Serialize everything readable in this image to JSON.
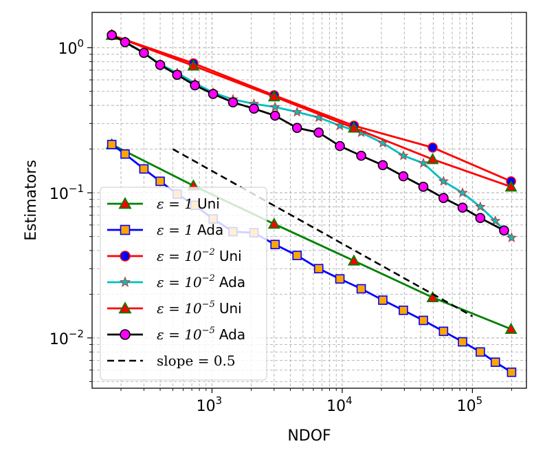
{
  "chart_data": {
    "type": "line",
    "xscale": "log",
    "yscale": "log",
    "xlim": [
      120,
      260000
    ],
    "ylim": [
      0.0045,
      1.75
    ],
    "xlabel": "NDOF",
    "ylabel": "Estimators",
    "xtick_labels": [
      {
        "base": "10",
        "exp": "3",
        "value": 1000
      },
      {
        "base": "10",
        "exp": "4",
        "value": 10000
      },
      {
        "base": "10",
        "exp": "5",
        "value": 100000
      }
    ],
    "ytick_labels": [
      {
        "base": "10",
        "exp": "−2",
        "value": 0.01
      },
      {
        "base": "10",
        "exp": "−1",
        "value": 0.1
      },
      {
        "base": "10",
        "exp": "0",
        "value": 1
      }
    ],
    "grid": true,
    "legend_position": "lower-left",
    "series": [
      {
        "name": "eps1-uni",
        "label_math": "ε = 1",
        "label_sup": "",
        "label_text": "Uni",
        "color": "#008000",
        "marker": "triangle",
        "marker_face": "#ff0000",
        "marker_edge": "#008000",
        "x": [
          170,
          720,
          3000,
          12300,
          49500,
          198000
        ],
        "y": [
          0.215,
          0.112,
          0.061,
          0.034,
          0.019,
          0.0115
        ]
      },
      {
        "name": "eps1-ada",
        "label_math": "ε = 1",
        "label_sup": "",
        "label_text": "Ada",
        "color": "#0000ff",
        "marker": "square",
        "marker_face": "#ffa500",
        "marker_edge": "#0000ff",
        "x": [
          170,
          215,
          300,
          400,
          540,
          740,
          1020,
          1450,
          2100,
          3050,
          4500,
          6600,
          9600,
          14000,
          20500,
          29500,
          42000,
          60000,
          84000,
          115000,
          150000,
          200000
        ],
        "y": [
          0.215,
          0.185,
          0.146,
          0.12,
          0.098,
          0.082,
          0.066,
          0.054,
          0.053,
          0.044,
          0.037,
          0.03,
          0.0255,
          0.0218,
          0.0182,
          0.0155,
          0.0132,
          0.0111,
          0.0094,
          0.008,
          0.0068,
          0.0058
        ]
      },
      {
        "name": "eps1e-2-uni",
        "label_math": "ε = 10",
        "label_sup": "−2",
        "label_text": "Uni",
        "color": "#ff0000",
        "marker": "circle",
        "marker_face": "#0000ff",
        "marker_edge": "#ff0000",
        "x": [
          170,
          720,
          3000,
          12300,
          49500,
          198000
        ],
        "y": [
          1.22,
          0.78,
          0.47,
          0.29,
          0.205,
          0.12
        ]
      },
      {
        "name": "eps1e-2-ada",
        "label_math": "ε = 10",
        "label_sup": "−2",
        "label_text": "Ada",
        "color": "#00bfbf",
        "marker": "star",
        "marker_face": "#00bfbf",
        "marker_edge": "#d62728",
        "x": [
          170,
          215,
          300,
          400,
          540,
          740,
          1020,
          1450,
          2100,
          3050,
          4500,
          6600,
          9600,
          14000,
          20500,
          29500,
          42000,
          60000,
          84000,
          115000,
          150000,
          200000
        ],
        "y": [
          1.22,
          1.1,
          0.92,
          0.77,
          0.67,
          0.57,
          0.49,
          0.44,
          0.41,
          0.39,
          0.36,
          0.33,
          0.29,
          0.26,
          0.22,
          0.18,
          0.16,
          0.12,
          0.1,
          0.08,
          0.064,
          0.049
        ]
      },
      {
        "name": "eps1e-5-uni",
        "label_math": "ε = 10",
        "label_sup": "−5",
        "label_text": "Uni",
        "color": "#ff0000",
        "marker": "triangle",
        "marker_face": "#ff0000",
        "marker_edge": "#008000",
        "x": [
          170,
          720,
          3000,
          12300,
          49500,
          198000
        ],
        "y": [
          1.22,
          0.75,
          0.46,
          0.28,
          0.17,
          0.11
        ]
      },
      {
        "name": "eps1e-5-ada",
        "label_math": "ε = 10",
        "label_sup": "−5",
        "label_text": "Ada",
        "color": "#000000",
        "marker": "circle",
        "marker_face": "#ff00ff",
        "marker_edge": "#000000",
        "x": [
          170,
          215,
          300,
          400,
          540,
          740,
          1020,
          1450,
          2100,
          3050,
          4500,
          6600,
          9600,
          14000,
          20500,
          29500,
          42000,
          60000,
          84000,
          115000,
          175000
        ],
        "y": [
          1.22,
          1.09,
          0.92,
          0.76,
          0.65,
          0.55,
          0.48,
          0.42,
          0.38,
          0.34,
          0.28,
          0.26,
          0.21,
          0.18,
          0.155,
          0.13,
          0.11,
          0.092,
          0.079,
          0.067,
          0.055
        ]
      },
      {
        "name": "slope-reference",
        "label_math": "",
        "label_sup": "",
        "label_text": "slope = 0.5",
        "color": "#000000",
        "dashed": true,
        "marker": "none",
        "x": [
          500,
          100000
        ],
        "y": [
          0.2,
          0.0141
        ]
      }
    ]
  }
}
